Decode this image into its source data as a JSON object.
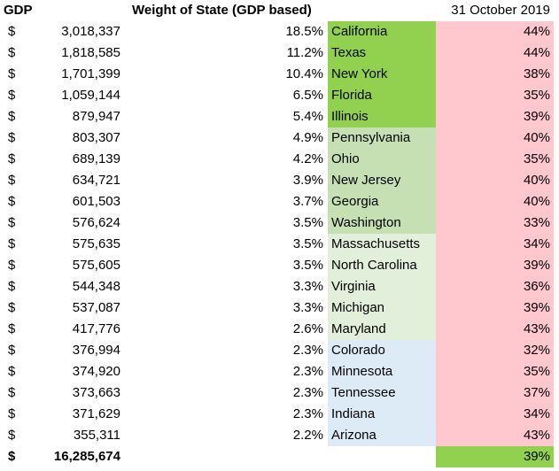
{
  "header": {
    "gdp_label": "GDP",
    "weight_label": "Weight of State (GDP based)",
    "date_label": "31 October 2019"
  },
  "currency_symbol": "$",
  "colors": {
    "tier1": "#92d050",
    "tier2": "#c6e0b4",
    "tier3": "#e2efda",
    "tier4": "#ddebf7",
    "pct_bg": "#ffc7ce",
    "total_pct_bg": "#92d050"
  },
  "rows": [
    {
      "gdp": "3,018,337",
      "weight": "18.5%",
      "state": "California",
      "pct": "44%",
      "tier": "tier1"
    },
    {
      "gdp": "1,818,585",
      "weight": "11.2%",
      "state": "Texas",
      "pct": "44%",
      "tier": "tier1"
    },
    {
      "gdp": "1,701,399",
      "weight": "10.4%",
      "state": "New York",
      "pct": "38%",
      "tier": "tier1"
    },
    {
      "gdp": "1,059,144",
      "weight": "6.5%",
      "state": "Florida",
      "pct": "35%",
      "tier": "tier1"
    },
    {
      "gdp": "879,947",
      "weight": "5.4%",
      "state": "Illinois",
      "pct": "39%",
      "tier": "tier1"
    },
    {
      "gdp": "803,307",
      "weight": "4.9%",
      "state": "Pennsylvania",
      "pct": "40%",
      "tier": "tier2"
    },
    {
      "gdp": "689,139",
      "weight": "4.2%",
      "state": "Ohio",
      "pct": "35%",
      "tier": "tier2"
    },
    {
      "gdp": "634,721",
      "weight": "3.9%",
      "state": "New Jersey",
      "pct": "40%",
      "tier": "tier2"
    },
    {
      "gdp": "601,503",
      "weight": "3.7%",
      "state": "Georgia",
      "pct": "40%",
      "tier": "tier2"
    },
    {
      "gdp": "576,624",
      "weight": "3.5%",
      "state": "Washington",
      "pct": "33%",
      "tier": "tier2"
    },
    {
      "gdp": "575,635",
      "weight": "3.5%",
      "state": "Massachusetts",
      "pct": "34%",
      "tier": "tier3"
    },
    {
      "gdp": "575,605",
      "weight": "3.5%",
      "state": "North Carolina",
      "pct": "39%",
      "tier": "tier3"
    },
    {
      "gdp": "544,348",
      "weight": "3.3%",
      "state": "Virginia",
      "pct": "36%",
      "tier": "tier3"
    },
    {
      "gdp": "537,087",
      "weight": "3.3%",
      "state": "Michigan",
      "pct": "39%",
      "tier": "tier3"
    },
    {
      "gdp": "417,776",
      "weight": "2.6%",
      "state": "Maryland",
      "pct": "43%",
      "tier": "tier3"
    },
    {
      "gdp": "376,994",
      "weight": "2.3%",
      "state": "Colorado",
      "pct": "32%",
      "tier": "tier4"
    },
    {
      "gdp": "374,920",
      "weight": "2.3%",
      "state": "Minnesota",
      "pct": "35%",
      "tier": "tier4"
    },
    {
      "gdp": "373,663",
      "weight": "2.3%",
      "state": "Tennessee",
      "pct": "37%",
      "tier": "tier4"
    },
    {
      "gdp": "371,629",
      "weight": "2.3%",
      "state": "Indiana",
      "pct": "34%",
      "tier": "tier4"
    },
    {
      "gdp": "355,311",
      "weight": "2.2%",
      "state": "Arizona",
      "pct": "43%",
      "tier": "tier4"
    }
  ],
  "total": {
    "gdp": "16,285,674",
    "pct": "39%"
  }
}
